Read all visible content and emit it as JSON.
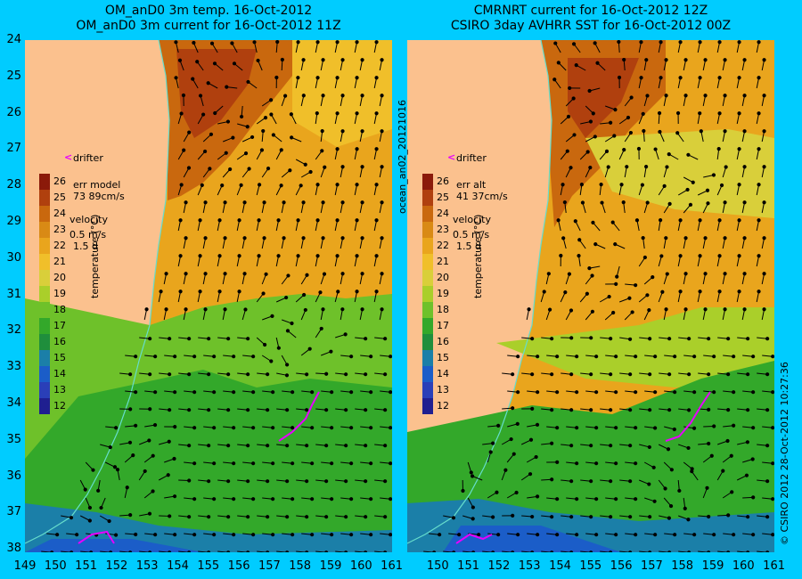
{
  "titles": {
    "left_line1": "OM_anD0 3m temp. 16-Oct-2012",
    "left_line2": "OM_anD0 3m current for 16-Oct-2012 11Z",
    "right_line1": "CMRNRT current for 16-Oct-2012 12Z",
    "right_line2": "CSIRO 3day AVHRR SST for 16-Oct-2012 00Z"
  },
  "axes": {
    "lat_labels": [
      "24",
      "25",
      "26",
      "27",
      "28",
      "29",
      "30",
      "31",
      "32",
      "33",
      "34",
      "35",
      "36",
      "37",
      "38"
    ],
    "lon_labels_left": [
      "149",
      "150",
      "151",
      "152",
      "153",
      "154",
      "155",
      "156",
      "157",
      "158",
      "159",
      "160",
      "161"
    ],
    "lon_labels_right": [
      "150",
      "151",
      "152",
      "153",
      "154",
      "155",
      "156",
      "157",
      "158",
      "159",
      "160",
      "161"
    ]
  },
  "colorbar": {
    "labels": [
      "26",
      "25",
      "24",
      "23",
      "22",
      "21",
      "20",
      "19",
      "18",
      "17",
      "16",
      "15",
      "14",
      "13",
      "12"
    ],
    "title": "temperature (°C)",
    "colors": [
      "#8b1a0a",
      "#b0400e",
      "#c9680e",
      "#d98a15",
      "#e9a51d",
      "#f0bf2a",
      "#d9cf3a",
      "#aacf2a",
      "#6ec12a",
      "#33a82a",
      "#1f8e3c",
      "#1b7fa8",
      "#1b5dc8",
      "#2a3fb8",
      "#1f1f90"
    ]
  },
  "left_panel": {
    "legend": {
      "drifter_label": "drifter",
      "err_line1": "err model",
      "err_line2": "73 89cm/s",
      "velocity_label": "velocity",
      "velocity_scale": "0.5 m/s",
      "velocity_days": "1.5 d"
    }
  },
  "right_panel": {
    "legend": {
      "drifter_label": "drifter",
      "err_line1": "err alt",
      "err_line2": "41 37cm/s",
      "velocity_label": "velocity",
      "velocity_scale": "0.5 m/s",
      "velocity_days": "1.5 d"
    }
  },
  "side_labels": {
    "middle": "ocean_an02_20121016",
    "right": "© CSIRO 2012   28-Oct-2012 10:27:36"
  },
  "colors": {
    "background": "#00ccff",
    "land": "#fbc18e",
    "drifter": "#e600ff",
    "coast": "#66ddcc"
  }
}
